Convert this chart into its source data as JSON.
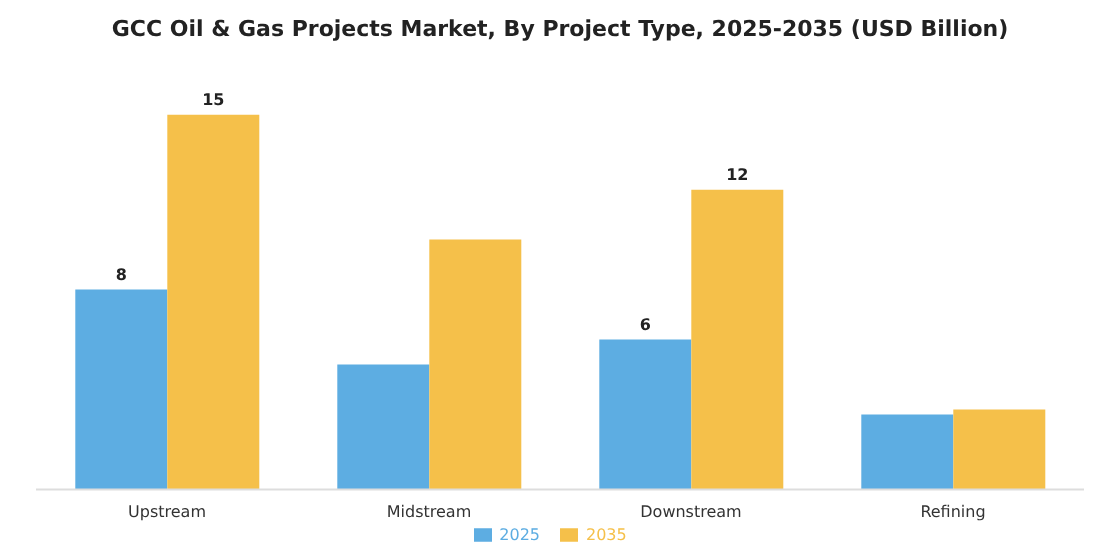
{
  "chart_data": {
    "type": "bar",
    "title": "GCC Oil & Gas Projects Market, By Project Type, 2025-2035 (USD Billion)",
    "categories": [
      "Upstream",
      "Midstream",
      "Downstream",
      "Refining"
    ],
    "series": [
      {
        "name": "2025",
        "color": "#5dade2",
        "values": [
          8,
          5.0,
          6,
          3.0
        ],
        "value_labels": [
          "8",
          null,
          "6",
          null
        ]
      },
      {
        "name": "2035",
        "color": "#f5c04a",
        "values": [
          15,
          10.0,
          12,
          3.2
        ],
        "value_labels": [
          "15",
          null,
          "12",
          null
        ]
      }
    ],
    "grid": false,
    "legend": "bottom",
    "tick_labels": "x"
  }
}
